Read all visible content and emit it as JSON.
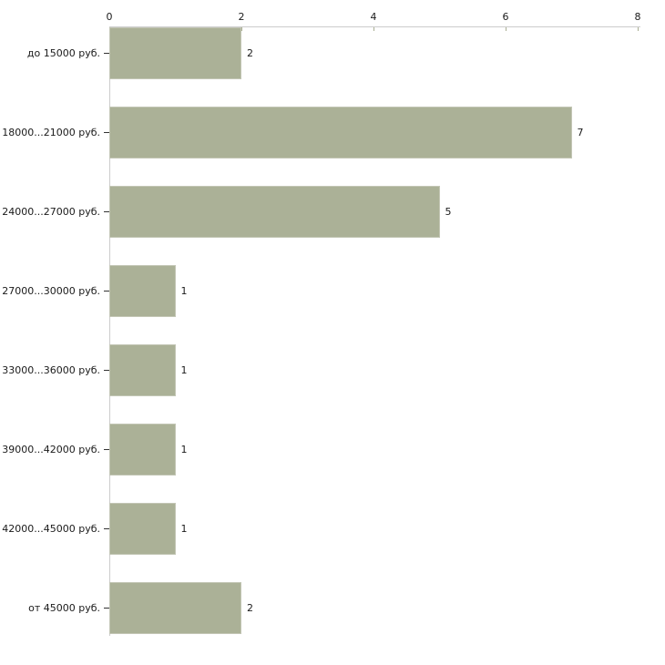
{
  "chart_data": {
    "type": "bar",
    "orientation": "horizontal",
    "title": "",
    "xlabel": "",
    "ylabel": "",
    "categories": [
      "до 15000 руб.",
      "18000...21000 руб.",
      "24000...27000 руб.",
      "27000...30000 руб.",
      "33000...36000 руб.",
      "39000...42000 руб.",
      "42000...45000 руб.",
      "от 45000 руб."
    ],
    "values": [
      2,
      7,
      5,
      1,
      1,
      1,
      1,
      2
    ],
    "value_labels": [
      "2",
      "7",
      "5",
      "1",
      "1",
      "1",
      "1",
      "2"
    ],
    "xlim": [
      0,
      8
    ],
    "x_ticks": [
      "0",
      "2",
      "4",
      "6",
      "8"
    ],
    "x_tick_values": [
      0,
      2,
      4,
      6,
      8
    ],
    "axis_position": "top",
    "grid": false,
    "legend": "none",
    "colors": {
      "bar_fill": "#abb197",
      "bar_border": "#c3c6b5",
      "axis_line": "#cccccc",
      "x_tick_mark": "#a9ae93",
      "y_tick_mark": "#333333",
      "text": "#1a1a1a",
      "background": "#ffffff"
    }
  }
}
